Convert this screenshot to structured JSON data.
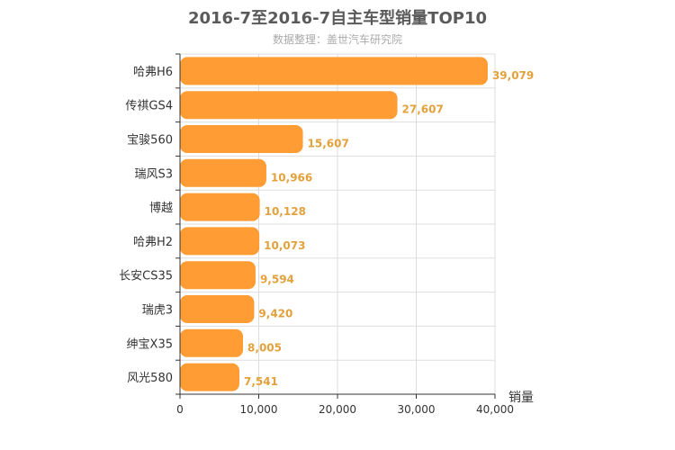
{
  "chart_data": {
    "type": "bar",
    "orientation": "horizontal",
    "title": "2016-7至2016-7自主车型销量TOP10",
    "subtitle": "数据整理：盖世汽车研究院",
    "categories": [
      "哈弗H6",
      "传祺GS4",
      "宝骏560",
      "瑞风S3",
      "博越",
      "哈弗H2",
      "长安CS35",
      "瑞虎3",
      "绅宝X35",
      "风光580"
    ],
    "values": [
      39079,
      27607,
      15607,
      10966,
      10128,
      10073,
      9594,
      9420,
      8005,
      7541
    ],
    "value_labels": [
      "39,079",
      "27,607",
      "15,607",
      "10,966",
      "10,128",
      "10,073",
      "9,594",
      "9,420",
      "8,005",
      "7,541"
    ],
    "xlim": [
      0,
      40000
    ],
    "xticks": [
      0,
      10000,
      20000,
      30000,
      40000
    ],
    "xtick_labels": [
      "0",
      "10,000",
      "20,000",
      "30,000",
      "40,000"
    ],
    "value_axis_label": "销量",
    "grid": true,
    "bar_color": "#ff9c33",
    "label_color": "#e3a13c"
  }
}
